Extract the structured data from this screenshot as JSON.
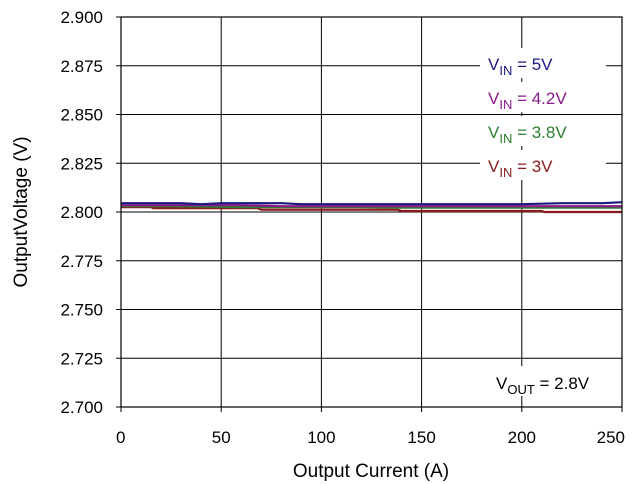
{
  "chart_data": {
    "type": "line",
    "title": "",
    "xlabel": "Output Current (A)",
    "ylabel": "OutputVoltage (V)",
    "xlim": [
      0,
      250
    ],
    "ylim": [
      2.7,
      2.9
    ],
    "x_ticks": [
      "0",
      "50",
      "100",
      "150",
      "200",
      "250"
    ],
    "y_ticks": [
      "2.700",
      "2.725",
      "2.750",
      "2.775",
      "2.800",
      "2.825",
      "2.850",
      "2.875",
      "2.900"
    ],
    "grid": true,
    "series": [
      {
        "name": "VIN = 5V",
        "label_base": "V",
        "label_sub": "IN",
        "label_rest": " = 5V",
        "color": "#1a1a80",
        "x": [
          0,
          10,
          20,
          30,
          40,
          50,
          60,
          70,
          80,
          90,
          100,
          120,
          140,
          160,
          180,
          200,
          220,
          240,
          250
        ],
        "y": [
          2.8045,
          2.8045,
          2.8045,
          2.8045,
          2.804,
          2.8045,
          2.8045,
          2.8045,
          2.8045,
          2.804,
          2.804,
          2.804,
          2.804,
          2.804,
          2.804,
          2.804,
          2.8045,
          2.8045,
          2.805
        ]
      },
      {
        "name": "VIN = 4.2V",
        "label_base": "V",
        "label_sub": "IN",
        "label_rest": " = 4.2V",
        "color": "#8b1a8b",
        "x": [
          0,
          20,
          40,
          60,
          80,
          100,
          120,
          140,
          160,
          180,
          200,
          220,
          250
        ],
        "y": [
          2.8035,
          2.8035,
          2.8035,
          2.8035,
          2.803,
          2.803,
          2.803,
          2.803,
          2.803,
          2.803,
          2.803,
          2.803,
          2.803
        ]
      },
      {
        "name": "VIN = 3.8V",
        "label_base": "V",
        "label_sub": "IN",
        "label_rest": " = 3.8V",
        "color": "#2e7d32",
        "x": [
          0,
          20,
          40,
          60,
          80,
          100,
          120,
          140,
          160,
          180,
          200,
          220,
          250
        ],
        "y": [
          2.803,
          2.803,
          2.8028,
          2.8025,
          2.8025,
          2.8025,
          2.8025,
          2.8022,
          2.8022,
          2.8022,
          2.8022,
          2.8022,
          2.8022
        ]
      },
      {
        "name": "VIN = 3V",
        "label_base": "V",
        "label_sub": "IN",
        "label_rest": " = 3V",
        "color": "#8b1a1a",
        "x": [
          0,
          15,
          16,
          30,
          68,
          70,
          100,
          138,
          140,
          180,
          210,
          211,
          250
        ],
        "y": [
          2.8025,
          2.8025,
          2.802,
          2.802,
          2.802,
          2.8012,
          2.8012,
          2.8012,
          2.8005,
          2.8005,
          2.8005,
          2.8,
          2.8
        ]
      }
    ],
    "annotation": {
      "base": "V",
      "sub": "OUT",
      "rest": " = 2.8V"
    }
  }
}
